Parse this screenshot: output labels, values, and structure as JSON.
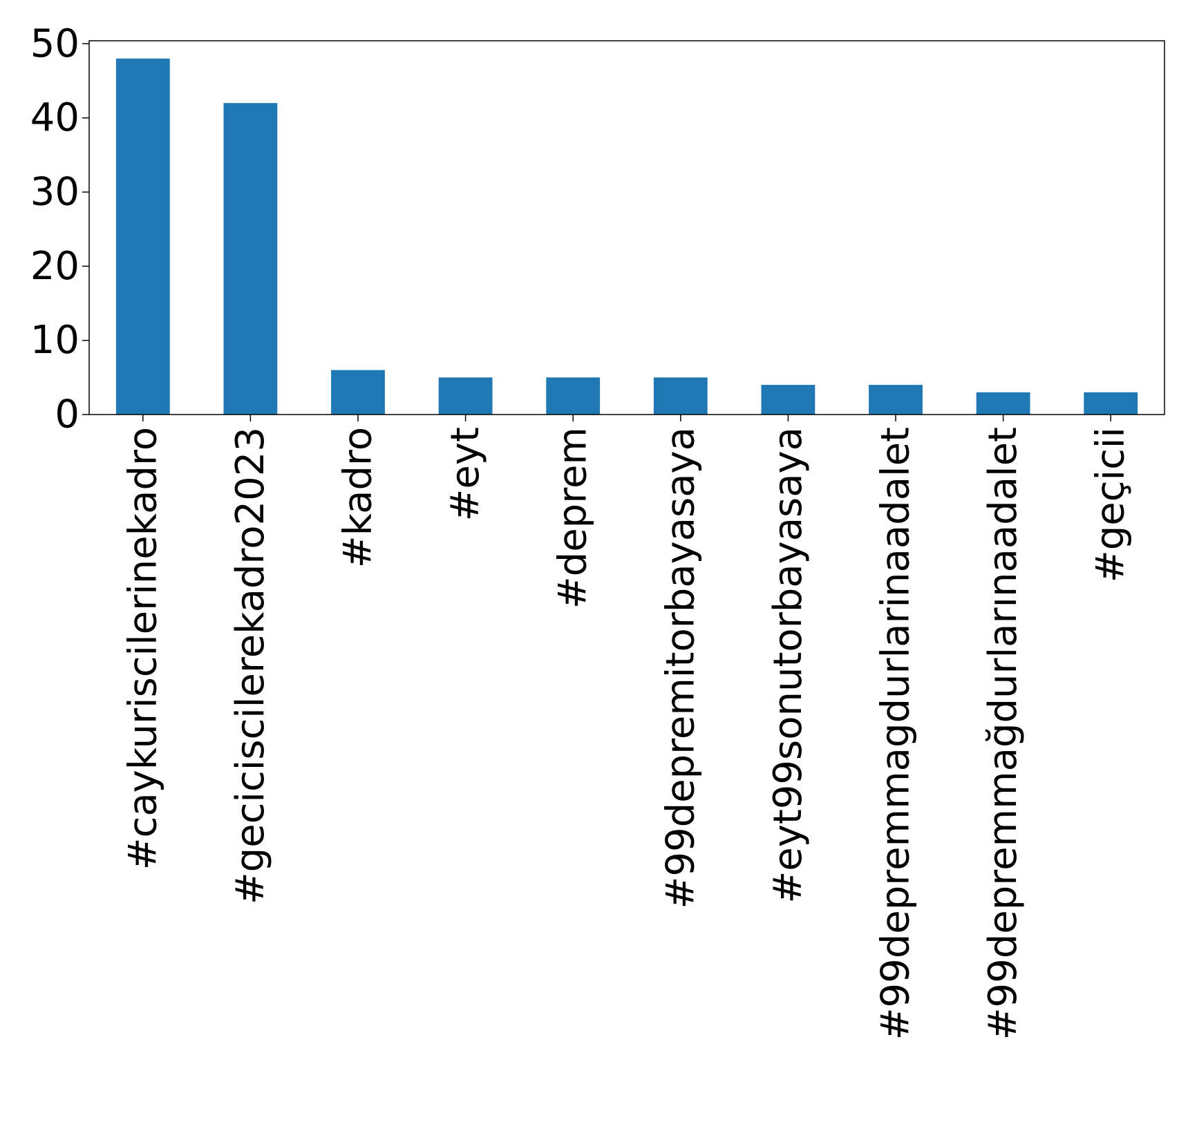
{
  "chart_data": {
    "type": "bar",
    "title": "",
    "xlabel": "",
    "ylabel": "",
    "categories": [
      "#caykuriscilerinekadro",
      "#geciciscilerekadro2023",
      "#kadro",
      "#eyt",
      "#deprem",
      "#99depremitorbayasaya",
      "#eyt99sonutorbayasaya",
      "#99depremmagdurlarinaadalet",
      "#99depremmağdurlarınaadalet",
      "#geçicii"
    ],
    "values": [
      48,
      42,
      6,
      5,
      5,
      5,
      4,
      4,
      3,
      3
    ],
    "ylim": [
      0,
      50.4
    ],
    "yticks": [
      0,
      10,
      20,
      30,
      40,
      50
    ],
    "grid": false,
    "legend": "none",
    "bar_color": "#1f77b4"
  }
}
